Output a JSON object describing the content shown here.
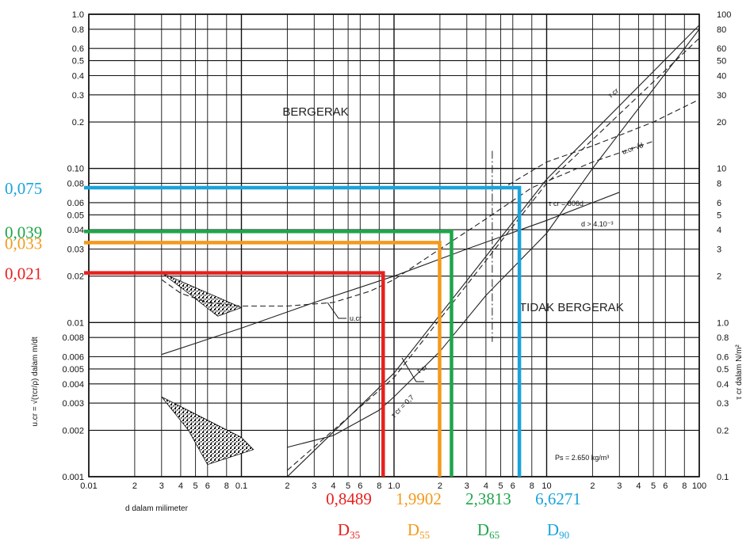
{
  "chart_data": {
    "type": "line",
    "scale": "log-log",
    "xlabel": "d dalam milimeter",
    "ylabel_left": "u.cr = √(τcr/ρ) dalam m/dt",
    "ylabel_right": "τ cr dalam N/m²",
    "xlim": [
      0.01,
      100
    ],
    "ylim_left": [
      0.001,
      1.0
    ],
    "ylim_right": [
      0.1,
      100
    ],
    "x_ticks": [
      "0.01",
      "2",
      "3",
      "4",
      "5",
      "6",
      "8",
      "0.1",
      "2",
      "3",
      "4",
      "5",
      "6",
      "8",
      "1.0",
      "2",
      "3",
      "4",
      "5",
      "6",
      "8",
      "10",
      "2",
      "3",
      "4",
      "5",
      "6",
      "8",
      "100"
    ],
    "y_ticks_left": [
      "1.0",
      "0.8",
      "0.6",
      "0.5",
      "0.4",
      "0.3",
      "0.2",
      "0.10",
      "0.08",
      "0.06",
      "0.05",
      "0.04",
      "0.03",
      "0.02",
      "0.01",
      "0.008",
      "0.006",
      "0.005",
      "0.004",
      "0.003",
      "0.002",
      "0.001"
    ],
    "y_ticks_right": [
      "100",
      "80",
      "60",
      "50",
      "40",
      "30",
      "20",
      "10",
      "8",
      "6",
      "5",
      "4",
      "3",
      "2",
      "1.0",
      "0.8",
      "0.6",
      "0.5",
      "0.4",
      "0.3",
      "0.2",
      "0.1"
    ],
    "regions": [
      "BERGERAK",
      "TIDAK BERGERAK"
    ],
    "annotations": {
      "tau_eq": "τ cr = 806d",
      "d_cond": "d > 4.10⁻³",
      "ps": "Ps = 2.650 kg/m³",
      "ucr": "u.cr",
      "ucr_sqrt": "u.cr √d",
      "tau_cr": "τ cr",
      "tau_line": "τ cr",
      "tau_lower": "τ cr = 0,7"
    },
    "highlights": [
      {
        "name": "D",
        "sub": "35",
        "d": 0.8489,
        "d_label": "0,8489",
        "u_label": "0,021",
        "u": 0.021,
        "color": "#e8201e"
      },
      {
        "name": "D",
        "sub": "55",
        "d": 1.9902,
        "d_label": "1,9902",
        "u_label": "0,033",
        "u": 0.033,
        "color": "#f39a1c"
      },
      {
        "name": "D",
        "sub": "65",
        "d": 2.3813,
        "d_label": "2,3813",
        "u_label": "0,039",
        "u": 0.039,
        "color": "#1ea54a"
      },
      {
        "name": "D",
        "sub": "90",
        "d": 6.6271,
        "d_label": "6,6271",
        "u_label": "0,075",
        "u": 0.075,
        "color": "#1aa3dc"
      }
    ],
    "series": [
      {
        "role": "ucr-curve",
        "style": "dashed",
        "x": [
          0.03,
          0.04,
          0.06,
          0.1,
          0.2,
          0.4,
          0.7,
          1.0,
          2.0,
          4.0,
          8.0,
          20.0,
          50.0
        ],
        "y": [
          0.019,
          0.0155,
          0.0135,
          0.0128,
          0.0128,
          0.0135,
          0.016,
          0.019,
          0.03,
          0.047,
          0.075,
          0.11,
          0.15
        ]
      },
      {
        "role": "ucr-line",
        "style": "solid",
        "x": [
          0.03,
          0.1,
          0.3,
          1.0,
          3.0,
          10.0,
          30.0
        ],
        "y": [
          0.0062,
          0.0092,
          0.0135,
          0.02,
          0.03,
          0.046,
          0.07
        ]
      },
      {
        "role": "ucr-sqrt",
        "style": "dashed",
        "x": [
          5.0,
          10.0,
          20.0,
          50.0,
          100.0
        ],
        "y": [
          0.073,
          0.11,
          0.14,
          0.2,
          0.28
        ]
      },
      {
        "role": "tau-curve",
        "style": "solid",
        "x": [
          0.2,
          0.4,
          0.8,
          1.0,
          2.0,
          4.0,
          10.0,
          20.0,
          100.0
        ],
        "y": [
          0.00155,
          0.00185,
          0.0027,
          0.0033,
          0.0065,
          0.015,
          0.038,
          0.1,
          0.8
        ]
      },
      {
        "role": "tau-line",
        "style": "solid",
        "x": [
          0.2,
          1.0,
          10.0,
          100.0
        ],
        "y": [
          0.001,
          0.0047,
          0.085,
          0.85
        ]
      },
      {
        "role": "tau-dashed",
        "style": "dashed",
        "x": [
          0.2,
          1.0,
          10.0,
          100.0
        ],
        "y": [
          0.0011,
          0.0044,
          0.08,
          0.7
        ]
      }
    ],
    "shaded": [
      {
        "role": "upper-scatter",
        "x": [
          0.03,
          0.1,
          0.07,
          0.045
        ],
        "y": [
          0.021,
          0.0125,
          0.011,
          0.0155
        ]
      },
      {
        "role": "lower-scatter",
        "x": [
          0.03,
          0.1,
          0.12,
          0.06,
          0.045
        ],
        "y": [
          0.0033,
          0.0018,
          0.0015,
          0.0012,
          0.002
        ]
      }
    ]
  }
}
